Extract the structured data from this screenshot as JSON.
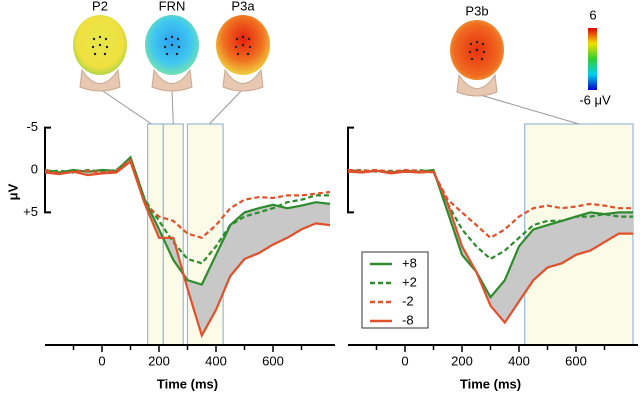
{
  "chart_data": [
    {
      "type": "line",
      "xlabel": "Time (ms)",
      "ylabel": "μV",
      "x": [
        -200,
        -150,
        -100,
        -50,
        0,
        50,
        100,
        150,
        200,
        250,
        300,
        350,
        400,
        450,
        500,
        550,
        600,
        650,
        700,
        750,
        800
      ],
      "xlim": [
        -200,
        800
      ],
      "xticks": [
        0,
        200,
        400,
        600
      ],
      "xticks_minor": [
        -100,
        100,
        300,
        500,
        700
      ],
      "ylim": [
        -5,
        20
      ],
      "yticks": [
        -5,
        0,
        {
          "value": 5,
          "label": "+5"
        }
      ],
      "components": [
        "P2",
        "FRN",
        "P3a"
      ],
      "windows": [
        [
          160,
          215
        ],
        [
          215,
          285
        ],
        [
          300,
          425
        ]
      ],
      "legend": false,
      "series": [
        {
          "name": "+8",
          "color": "#2e8b2e",
          "dash": false,
          "values": [
            0,
            0.3,
            0,
            0.2,
            0,
            0.1,
            -1.5,
            3.5,
            7,
            10.6,
            13,
            13.5,
            10,
            6.5,
            5,
            4.5,
            4.1,
            4.5,
            4.2,
            3.8,
            4
          ]
        },
        {
          "name": "+2",
          "color": "#2e8b2e",
          "dash": true,
          "values": [
            0.2,
            0.1,
            0.3,
            0,
            0.2,
            0,
            -1.3,
            3.5,
            6,
            8.5,
            10.5,
            11,
            9,
            6.5,
            5.5,
            5,
            4.5,
            3.8,
            3.5,
            3,
            3
          ]
        },
        {
          "name": "-2",
          "color": "#e0502a",
          "dash": true,
          "values": [
            0,
            0.4,
            0.2,
            0.1,
            0.3,
            0.1,
            -1.2,
            4,
            5.5,
            6,
            7.5,
            8,
            6.5,
            4.5,
            3.5,
            3.2,
            3.3,
            3,
            3,
            2.8,
            2.6
          ]
        },
        {
          "name": "-8",
          "color": "#e0502a",
          "dash": false,
          "values": [
            0.3,
            0.5,
            0.2,
            0.6,
            0.4,
            0.3,
            -1,
            4,
            8,
            8,
            14,
            19.5,
            16.5,
            12.5,
            10.5,
            9.8,
            8.8,
            8,
            7,
            6.3,
            6.5
          ]
        }
      ]
    },
    {
      "type": "line",
      "xlabel": "Time (ms)",
      "x": [
        -200,
        -150,
        -100,
        -50,
        0,
        50,
        100,
        150,
        200,
        250,
        300,
        350,
        400,
        450,
        500,
        550,
        600,
        650,
        700,
        750,
        800
      ],
      "xlim": [
        -200,
        800
      ],
      "xticks": [
        0,
        200,
        400,
        600
      ],
      "xticks_minor": [
        -100,
        100,
        300,
        500,
        700
      ],
      "ylim": [
        -5,
        20
      ],
      "yticks": [
        -5,
        0,
        5
      ],
      "components": [
        "P3b"
      ],
      "windows": [
        [
          420,
          800
        ]
      ],
      "legend": true,
      "colorbar_labels": [
        "6",
        "-6 μV"
      ],
      "series": [
        {
          "name": "+8",
          "color": "#2e8b2e",
          "dash": false,
          "values": [
            0,
            0.2,
            0.1,
            0.3,
            0.1,
            0.2,
            0,
            5,
            10,
            12,
            15,
            13,
            9,
            7,
            6.5,
            6,
            5.5,
            5,
            5.2,
            5,
            5
          ]
        },
        {
          "name": "+2",
          "color": "#2e8b2e",
          "dash": true,
          "values": [
            0.1,
            0,
            0.2,
            0.1,
            0.2,
            0,
            0.2,
            4,
            7,
            9,
            10.5,
            9.5,
            8,
            6.5,
            6,
            6,
            5.5,
            5.5,
            5.2,
            5.5,
            5.5
          ]
        },
        {
          "name": "-2",
          "color": "#e0502a",
          "dash": true,
          "values": [
            0,
            0.1,
            0,
            0.2,
            0,
            0.1,
            0.3,
            3.5,
            5,
            6.5,
            8,
            7,
            5.5,
            4.5,
            4.2,
            4.5,
            4.3,
            4,
            4.2,
            4.5,
            4.5
          ]
        },
        {
          "name": "-8",
          "color": "#e0502a",
          "dash": false,
          "values": [
            0.2,
            0.3,
            0.1,
            0.4,
            0.2,
            0.3,
            0.2,
            4,
            9,
            12,
            16,
            18,
            15.5,
            13,
            11.5,
            11,
            10,
            9.5,
            8.5,
            7.5,
            7.5
          ]
        }
      ]
    }
  ]
}
